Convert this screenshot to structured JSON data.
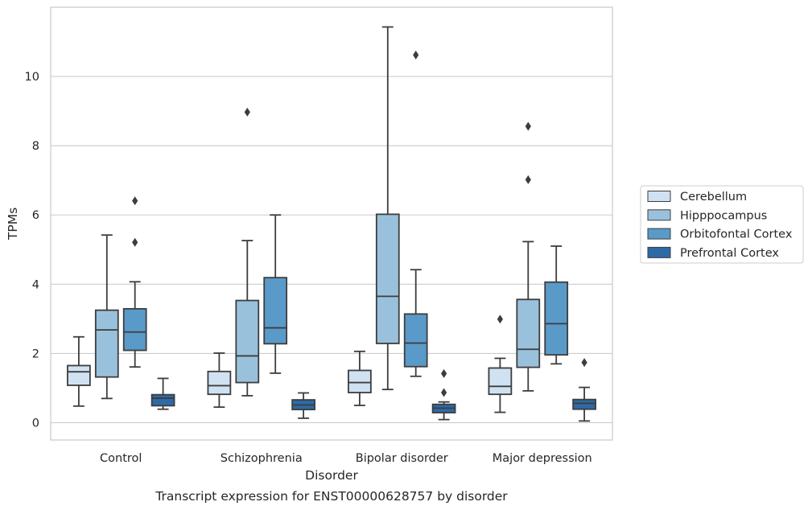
{
  "chart_data": {
    "type": "boxplot",
    "title": "",
    "caption": "Transcript expression for ENST00000628757 by disorder",
    "xlabel": "Disorder",
    "ylabel": "TPMs",
    "ylim": [
      -0.5,
      12.0
    ],
    "yticks": [
      0,
      2,
      4,
      6,
      8,
      10
    ],
    "grid": "horizontal",
    "legend_position": "right",
    "categories": [
      "Control",
      "Schizophrenia",
      "Bipolar disorder",
      "Major depression"
    ],
    "series": [
      {
        "name": "Cerebellum",
        "color": "#d0e1f2",
        "boxes": [
          {
            "whislo": 0.48,
            "q1": 1.08,
            "med": 1.47,
            "q3": 1.65,
            "whishi": 2.48,
            "fliers": []
          },
          {
            "whislo": 0.45,
            "q1": 0.82,
            "med": 1.07,
            "q3": 1.48,
            "whishi": 2.01,
            "fliers": []
          },
          {
            "whislo": 0.5,
            "q1": 0.87,
            "med": 1.16,
            "q3": 1.51,
            "whishi": 2.06,
            "fliers": []
          },
          {
            "whislo": 0.3,
            "q1": 0.82,
            "med": 1.05,
            "q3": 1.58,
            "whishi": 1.86,
            "fliers": [
              2.99
            ]
          }
        ]
      },
      {
        "name": "Hipppocampus",
        "color": "#9ac1dc",
        "boxes": [
          {
            "whislo": 0.7,
            "q1": 1.32,
            "med": 2.68,
            "q3": 3.25,
            "whishi": 5.42,
            "fliers": []
          },
          {
            "whislo": 0.78,
            "q1": 1.16,
            "med": 1.93,
            "q3": 3.53,
            "whishi": 5.26,
            "fliers": [
              8.97
            ]
          },
          {
            "whislo": 0.96,
            "q1": 2.29,
            "med": 3.65,
            "q3": 6.02,
            "whishi": 11.43,
            "fliers": []
          },
          {
            "whislo": 0.92,
            "q1": 1.6,
            "med": 2.12,
            "q3": 3.56,
            "whishi": 5.23,
            "fliers": [
              7.02,
              8.56
            ]
          }
        ]
      },
      {
        "name": "Orbitofontal Cortex",
        "color": "#5a9ac9",
        "boxes": [
          {
            "whislo": 1.61,
            "q1": 2.09,
            "med": 2.62,
            "q3": 3.29,
            "whishi": 4.07,
            "fliers": [
              5.21,
              6.41
            ]
          },
          {
            "whislo": 1.43,
            "q1": 2.28,
            "med": 2.74,
            "q3": 4.19,
            "whishi": 6.0,
            "fliers": []
          },
          {
            "whislo": 1.34,
            "q1": 1.62,
            "med": 2.3,
            "q3": 3.14,
            "whishi": 4.42,
            "fliers": [
              10.62
            ]
          },
          {
            "whislo": 1.7,
            "q1": 1.96,
            "med": 2.86,
            "q3": 4.06,
            "whishi": 5.1,
            "fliers": []
          }
        ]
      },
      {
        "name": "Prefrontal Cortex",
        "color": "#2d6aa6",
        "boxes": [
          {
            "whislo": 0.39,
            "q1": 0.49,
            "med": 0.71,
            "q3": 0.81,
            "whishi": 1.28,
            "fliers": []
          },
          {
            "whislo": 0.13,
            "q1": 0.38,
            "med": 0.51,
            "q3": 0.66,
            "whishi": 0.86,
            "fliers": []
          },
          {
            "whislo": 0.09,
            "q1": 0.29,
            "med": 0.42,
            "q3": 0.53,
            "whishi": 0.6,
            "fliers": [
              0.87,
              1.42
            ]
          },
          {
            "whislo": 0.05,
            "q1": 0.39,
            "med": 0.56,
            "q3": 0.67,
            "whishi": 1.02,
            "fliers": [
              1.74
            ]
          }
        ]
      }
    ]
  }
}
